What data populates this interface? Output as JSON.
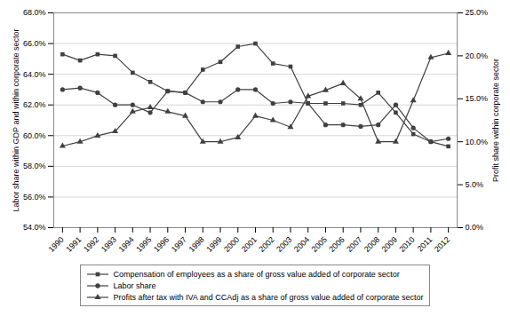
{
  "chart_data": {
    "type": "line",
    "ylabel": "Labor share within GDP and within corporate sector",
    "y2label": "Profit share within corporate sector",
    "x": [
      1990,
      1991,
      1992,
      1993,
      1994,
      1995,
      1996,
      1997,
      1998,
      1999,
      2000,
      2001,
      2002,
      2003,
      2004,
      2005,
      2006,
      2007,
      2008,
      2009,
      2010,
      2011,
      2012
    ],
    "xlim": [
      1989.5,
      2012.5
    ],
    "xticks": [
      1990,
      1991,
      1992,
      1993,
      1994,
      1995,
      1996,
      1997,
      1998,
      1999,
      2000,
      2001,
      2002,
      2003,
      2004,
      2005,
      2006,
      2007,
      2008,
      2009,
      2010,
      2011,
      2012
    ],
    "ylim": [
      54.0,
      68.0
    ],
    "yticks": [
      {
        "value": 54.0,
        "label": "54.0%"
      },
      {
        "value": 56.0,
        "label": "56.0%"
      },
      {
        "value": 58.0,
        "label": "58.0%"
      },
      {
        "value": 60.0,
        "label": "60.0%"
      },
      {
        "value": 62.0,
        "label": "62.0%"
      },
      {
        "value": 64.0,
        "label": "64.0%"
      },
      {
        "value": 66.0,
        "label": "66.0%"
      },
      {
        "value": 68.0,
        "label": "68.0%"
      }
    ],
    "y2lim": [
      0.0,
      25.0
    ],
    "y2ticks": [
      {
        "value": 0.0,
        "label": "0.0%"
      },
      {
        "value": 5.0,
        "label": "5.0%"
      },
      {
        "value": 10.0,
        "label": "10.0%"
      },
      {
        "value": 15.0,
        "label": "15.0%"
      },
      {
        "value": 20.0,
        "label": "20.0%"
      },
      {
        "value": 25.0,
        "label": "25.0%"
      }
    ],
    "grid": true,
    "legend": "bottom",
    "series": [
      {
        "name": "Compensation of employees as a share of gross value added of corporate sector",
        "color": "#404040",
        "marker": "square",
        "values": [
          65.3,
          64.9,
          65.3,
          65.2,
          64.1,
          63.5,
          62.9,
          62.8,
          64.3,
          64.8,
          65.8,
          66.0,
          64.7,
          64.5,
          62.1,
          62.1,
          62.1,
          62.0,
          62.8,
          61.5,
          60.1,
          59.6,
          59.3
        ]
      },
      {
        "name": "Labor share",
        "color": "#404040",
        "marker": "circle",
        "values": [
          63.0,
          63.1,
          62.8,
          62.0,
          62.0,
          61.5,
          62.9,
          62.8,
          62.2,
          62.2,
          63.0,
          63.0,
          62.1,
          62.2,
          62.1,
          60.7,
          60.7,
          60.6,
          60.7,
          62.0,
          60.5,
          59.6,
          59.8
        ]
      },
      {
        "name": "Profits after tax with IVA and CCAdj as a share of gross value added of corporate sector",
        "color": "#404040",
        "marker": "triangle",
        "axis": "y2",
        "values": [
          9.5,
          10.0,
          10.7,
          11.2,
          13.5,
          14.0,
          13.5,
          13.0,
          10.0,
          10.0,
          10.5,
          13.0,
          12.5,
          11.7,
          15.3,
          16.0,
          16.8,
          15.0,
          10.0,
          10.0,
          14.8,
          19.8,
          20.3
        ]
      }
    ]
  }
}
